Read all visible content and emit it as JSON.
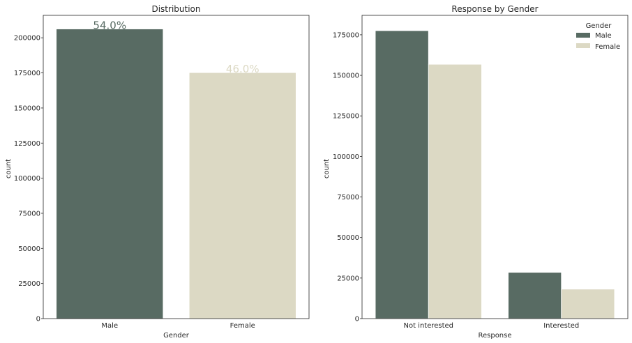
{
  "chart_data": [
    {
      "type": "bar",
      "title": "Distribution",
      "xlabel": "Gender",
      "ylabel": "count",
      "categories": [
        "Male",
        "Female"
      ],
      "values": [
        206089,
        175020
      ],
      "annotations": [
        "54.0%",
        "46.0%"
      ],
      "ylim": [
        0,
        216000
      ],
      "yticks": [
        0,
        25000,
        50000,
        75000,
        100000,
        125000,
        150000,
        175000,
        200000
      ],
      "colors": [
        "#586b63",
        "#dcd9c4"
      ],
      "grid": false
    },
    {
      "type": "bar",
      "title": "Response by Gender",
      "xlabel": "Response",
      "ylabel": "count",
      "categories": [
        "Not interested",
        "Interested"
      ],
      "series": [
        {
          "name": "Male",
          "values": [
            177564,
            28525
          ],
          "color": "#586b63"
        },
        {
          "name": "Female",
          "values": [
            156835,
            18185
          ],
          "color": "#dcd9c4"
        }
      ],
      "legend_title": "Gender",
      "legend_position": "top-right",
      "ylim": [
        0,
        187000
      ],
      "yticks": [
        0,
        25000,
        50000,
        75000,
        100000,
        125000,
        150000,
        175000
      ],
      "grid": false
    }
  ]
}
